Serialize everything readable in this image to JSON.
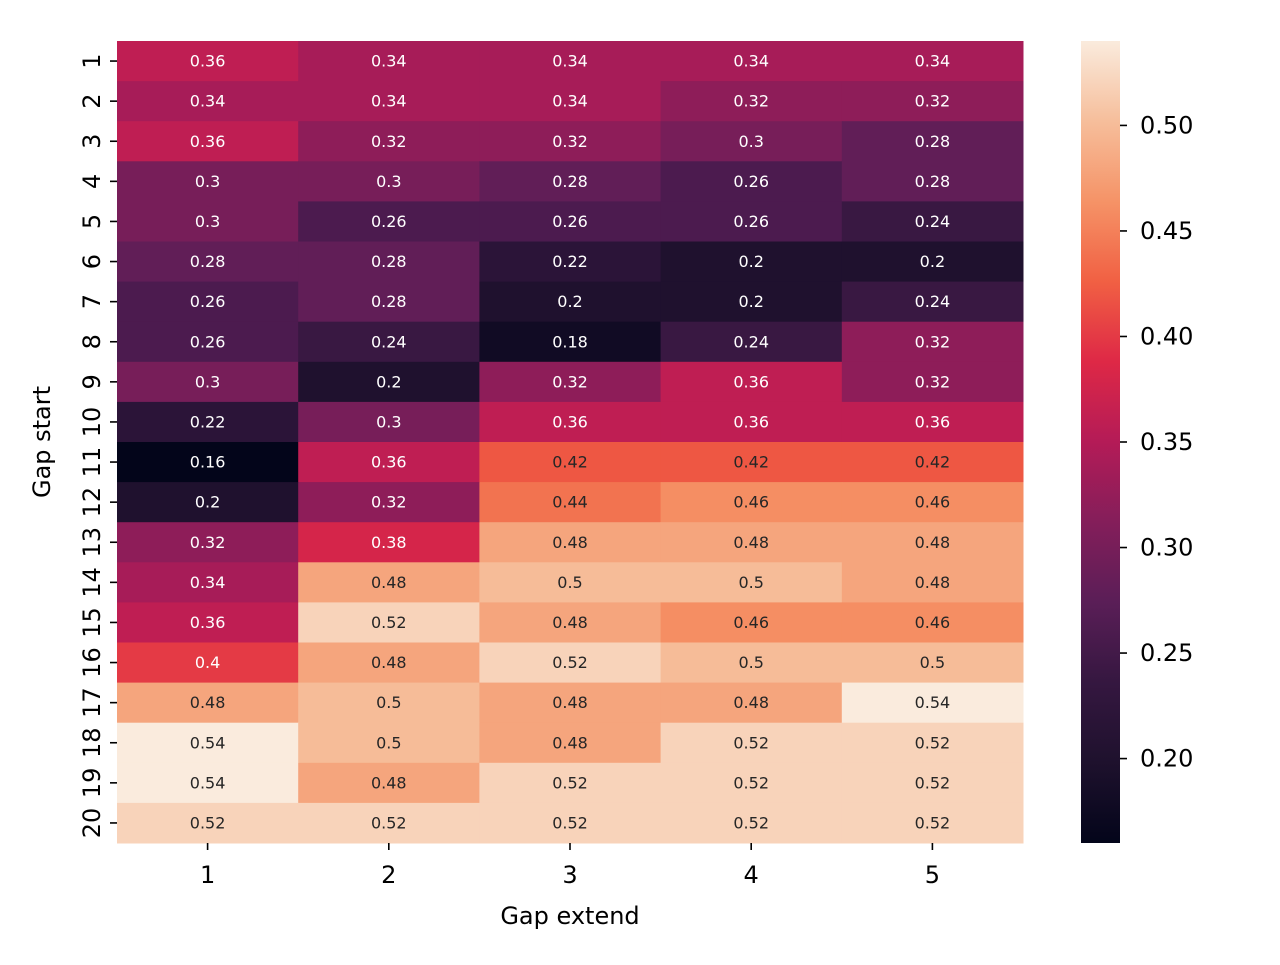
{
  "chart_data": {
    "type": "heatmap",
    "title": "",
    "xlabel": "Gap extend",
    "ylabel": "Gap start",
    "x_categories": [
      "1",
      "2",
      "3",
      "4",
      "5"
    ],
    "y_categories": [
      "1",
      "2",
      "3",
      "4",
      "5",
      "6",
      "7",
      "8",
      "9",
      "10",
      "11",
      "12",
      "13",
      "14",
      "15",
      "16",
      "17",
      "18",
      "19",
      "20"
    ],
    "values": [
      [
        0.36,
        0.34,
        0.34,
        0.34,
        0.34
      ],
      [
        0.34,
        0.34,
        0.34,
        0.32,
        0.32
      ],
      [
        0.36,
        0.32,
        0.32,
        0.3,
        0.28
      ],
      [
        0.3,
        0.3,
        0.28,
        0.26,
        0.28
      ],
      [
        0.3,
        0.26,
        0.26,
        0.26,
        0.24
      ],
      [
        0.28,
        0.28,
        0.22,
        0.2,
        0.2
      ],
      [
        0.26,
        0.28,
        0.2,
        0.2,
        0.24
      ],
      [
        0.26,
        0.24,
        0.18,
        0.24,
        0.32
      ],
      [
        0.3,
        0.2,
        0.32,
        0.36,
        0.32
      ],
      [
        0.22,
        0.3,
        0.36,
        0.36,
        0.36
      ],
      [
        0.16,
        0.36,
        0.42,
        0.42,
        0.42
      ],
      [
        0.2,
        0.32,
        0.44,
        0.46,
        0.46
      ],
      [
        0.32,
        0.38,
        0.48,
        0.48,
        0.48
      ],
      [
        0.34,
        0.48,
        0.5,
        0.5,
        0.48
      ],
      [
        0.36,
        0.52,
        0.48,
        0.46,
        0.46
      ],
      [
        0.4,
        0.48,
        0.52,
        0.5,
        0.5
      ],
      [
        0.48,
        0.5,
        0.48,
        0.48,
        0.54
      ],
      [
        0.54,
        0.5,
        0.48,
        0.52,
        0.52
      ],
      [
        0.54,
        0.48,
        0.52,
        0.52,
        0.52
      ],
      [
        0.52,
        0.52,
        0.52,
        0.52,
        0.52
      ]
    ],
    "vmin": 0.16,
    "vmax": 0.54,
    "colormap": "rocket",
    "colorbar_ticks": [
      0.2,
      0.25,
      0.3,
      0.35,
      0.4,
      0.45,
      0.5
    ],
    "colorbar_tick_labels": [
      "0.20",
      "0.25",
      "0.30",
      "0.35",
      "0.40",
      "0.45",
      "0.50"
    ],
    "annotate": true,
    "grid": false
  }
}
